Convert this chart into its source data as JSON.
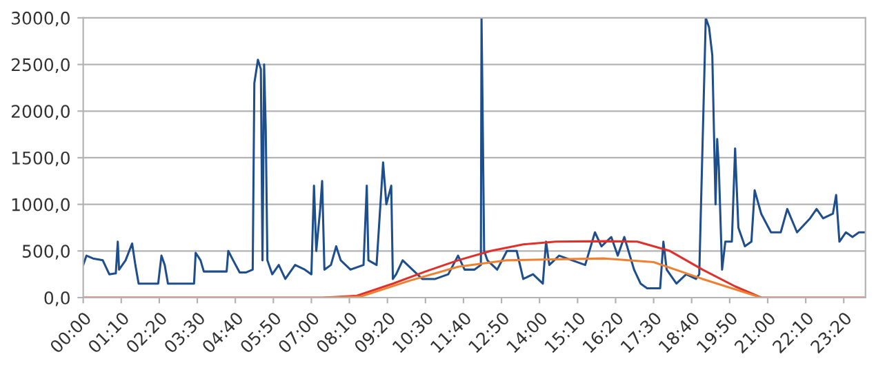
{
  "chart_data": {
    "type": "line",
    "xlim": [
      0,
      24
    ],
    "ylim": [
      0,
      3000
    ],
    "xticks": [
      {
        "value": 0,
        "label": "00:00"
      },
      {
        "value": 1.1667,
        "label": "01:10"
      },
      {
        "value": 2.3333,
        "label": "02:20"
      },
      {
        "value": 3.5,
        "label": "03:30"
      },
      {
        "value": 4.6667,
        "label": "04:40"
      },
      {
        "value": 5.8333,
        "label": "05:50"
      },
      {
        "value": 7,
        "label": "07:00"
      },
      {
        "value": 8.1667,
        "label": "08:10"
      },
      {
        "value": 9.3333,
        "label": "09:20"
      },
      {
        "value": 10.5,
        "label": "10:30"
      },
      {
        "value": 11.6667,
        "label": "11:40"
      },
      {
        "value": 12.8333,
        "label": "12:50"
      },
      {
        "value": 14,
        "label": "14:00"
      },
      {
        "value": 15.1667,
        "label": "15:10"
      },
      {
        "value": 16.3333,
        "label": "16:20"
      },
      {
        "value": 17.5,
        "label": "17:30"
      },
      {
        "value": 18.6667,
        "label": "18:40"
      },
      {
        "value": 19.8333,
        "label": "19:50"
      },
      {
        "value": 21,
        "label": "21:00"
      },
      {
        "value": 22.1667,
        "label": "22:10"
      },
      {
        "value": 23.3333,
        "label": "23:20"
      }
    ],
    "yticks": [
      {
        "value": 0,
        "label": "0,0"
      },
      {
        "value": 500,
        "label": "500,0"
      },
      {
        "value": 1000,
        "label": "1000,0"
      },
      {
        "value": 1500,
        "label": "1500,0"
      },
      {
        "value": 2000,
        "label": "2000,0"
      },
      {
        "value": 2500,
        "label": "2500,0"
      },
      {
        "value": 3000,
        "label": "3000,0"
      }
    ],
    "grid": "y",
    "legend": false,
    "series": [
      {
        "color": "#1f4e8c",
        "x": [
          0,
          0.1,
          0.3,
          0.6,
          0.8,
          1.0,
          1.06,
          1.1,
          1.3,
          1.5,
          1.6,
          1.7,
          2.0,
          2.3,
          2.4,
          2.5,
          2.6,
          3.0,
          3.4,
          3.45,
          3.6,
          3.7,
          4.0,
          4.4,
          4.45,
          4.6,
          4.8,
          5.0,
          5.2,
          5.25,
          5.36,
          5.45,
          5.5,
          5.55,
          5.6,
          5.65,
          5.8,
          6.0,
          6.2,
          6.5,
          6.8,
          7.0,
          7.08,
          7.15,
          7.27,
          7.33,
          7.4,
          7.6,
          7.76,
          7.9,
          8.2,
          8.6,
          8.7,
          8.75,
          9.0,
          9.2,
          9.3,
          9.45,
          9.5,
          9.6,
          9.8,
          10.1,
          10.4,
          10.8,
          11.2,
          11.5,
          11.7,
          12.0,
          12.2,
          12.22,
          12.25,
          12.3,
          12.4,
          12.7,
          13.0,
          13.3,
          13.5,
          13.8,
          14.1,
          14.2,
          14.3,
          14.6,
          15.0,
          15.4,
          15.7,
          15.9,
          16.2,
          16.4,
          16.6,
          16.9,
          17.1,
          17.3,
          17.7,
          17.8,
          17.9,
          18.2,
          18.5,
          18.8,
          18.9,
          19.1,
          19.2,
          19.3,
          19.4,
          19.45,
          19.5,
          19.6,
          19.7,
          19.9,
          20.0,
          20.1,
          20.3,
          20.5,
          20.6,
          20.8,
          21.1,
          21.4,
          21.6,
          21.9,
          22.3,
          22.5,
          22.7,
          23.0,
          23.1,
          23.2,
          23.4,
          23.6,
          23.8,
          24.0
        ],
        "values": [
          350,
          450,
          420,
          400,
          250,
          260,
          600,
          300,
          400,
          580,
          350,
          150,
          150,
          150,
          450,
          350,
          150,
          150,
          150,
          480,
          400,
          280,
          280,
          280,
          500,
          400,
          270,
          270,
          300,
          2300,
          2550,
          2450,
          400,
          2500,
          1800,
          400,
          250,
          350,
          200,
          350,
          300,
          250,
          1200,
          500,
          950,
          1250,
          300,
          350,
          550,
          400,
          300,
          350,
          1200,
          400,
          350,
          1450,
          1000,
          1200,
          200,
          250,
          400,
          300,
          200,
          200,
          250,
          450,
          300,
          300,
          350,
          3000,
          2100,
          500,
          400,
          300,
          500,
          500,
          200,
          250,
          150,
          600,
          350,
          450,
          400,
          350,
          700,
          550,
          650,
          450,
          650,
          300,
          150,
          100,
          100,
          600,
          300,
          150,
          250,
          200,
          250,
          3000,
          2900,
          2600,
          1000,
          1700,
          1400,
          300,
          600,
          600,
          1600,
          750,
          550,
          600,
          1150,
          900,
          700,
          700,
          950,
          700,
          850,
          950,
          850,
          900,
          1100,
          600,
          700,
          650,
          700,
          700
        ]
      },
      {
        "color": "#e0302a",
        "x": [
          0,
          7.4,
          8.4,
          9.5,
          10.5,
          11.5,
          12.5,
          13.5,
          14.5,
          16.0,
          17.0,
          18.0,
          19.0,
          20.0,
          20.8,
          24.0
        ],
        "values": [
          0,
          0,
          20,
          150,
          280,
          400,
          500,
          570,
          600,
          605,
          600,
          500,
          300,
          120,
          0,
          0
        ]
      },
      {
        "color": "#f08030",
        "x": [
          7.4,
          8.5,
          10.0,
          11.5,
          13.0,
          16.0,
          17.5,
          19.0,
          20.8
        ],
        "values": [
          0,
          10,
          180,
          330,
          400,
          420,
          380,
          200,
          0
        ]
      }
    ]
  }
}
